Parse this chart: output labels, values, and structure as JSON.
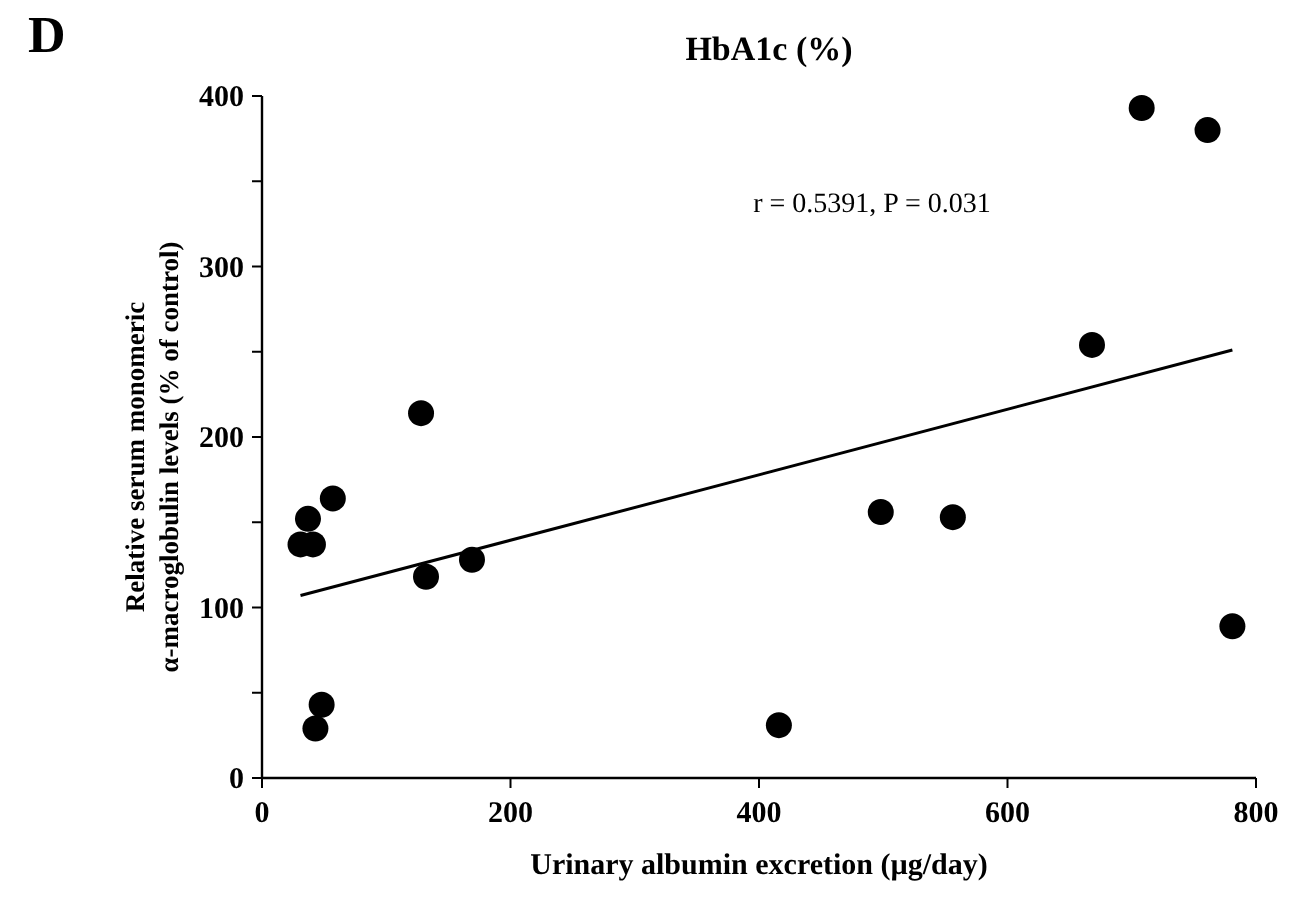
{
  "chart_data": {
    "type": "scatter",
    "xlabel": "Urinary albumin excretion (µg/day)",
    "ylabel": "Relative serum monomeric\nα-macroglobulin levels (% of control)",
    "annotations": [
      "D",
      "HbA1c (%)",
      "r = 0.5391, P = 0.031"
    ],
    "xlim": [
      0,
      800
    ],
    "xticks": [
      0,
      200,
      400,
      600,
      800
    ],
    "ylim": [
      0,
      400
    ],
    "yticks": [
      0,
      {
        "value": 50,
        "label": null
      },
      100,
      {
        "value": 150,
        "label": null
      },
      200,
      {
        "value": 250,
        "label": null
      },
      300,
      {
        "value": 350,
        "label": null
      },
      400
    ],
    "marker": "circle",
    "grid": false,
    "series": [
      {
        "color": "#000000",
        "x": [
          31,
          41,
          37,
          57,
          128,
          132,
          169,
          48,
          43,
          416,
          498,
          556,
          668,
          708,
          761,
          781
        ],
        "values": [
          137,
          137,
          152,
          164,
          214,
          118,
          128,
          43,
          29,
          31,
          156,
          153,
          254,
          393,
          380,
          89
        ]
      },
      {
        "type": "line",
        "color": "#000000",
        "line_style": "solid",
        "marker": "none",
        "x": [
          31,
          781
        ],
        "values": [
          107,
          251
        ]
      }
    ]
  }
}
